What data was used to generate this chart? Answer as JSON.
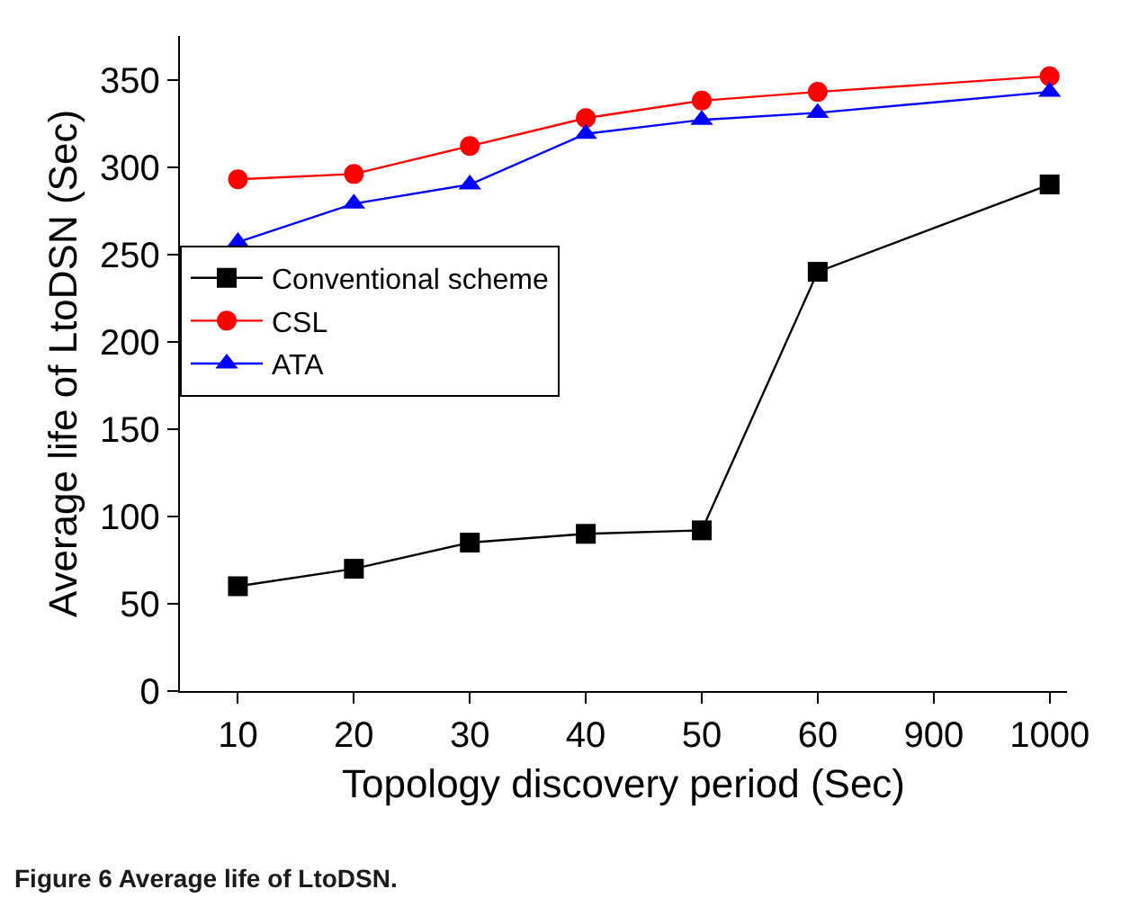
{
  "chart_data": {
    "type": "line",
    "xlabel": "Topology discovery period (Sec)",
    "ylabel": "Average life of LtoDSN (Sec)",
    "categories": [
      "10",
      "20",
      "30",
      "40",
      "50",
      "60",
      "900",
      "1000"
    ],
    "series": [
      {
        "name": "Conventional scheme",
        "color": "#000000",
        "marker": "square",
        "values": [
          60,
          70,
          85,
          90,
          92,
          240,
          null,
          290
        ]
      },
      {
        "name": "CSL",
        "color": "#ff0000",
        "marker": "circle",
        "values": [
          293,
          296,
          312,
          328,
          338,
          343,
          null,
          352
        ]
      },
      {
        "name": "ATA",
        "color": "#0000ff",
        "marker": "triangle",
        "values": [
          257,
          279,
          290,
          319,
          327,
          331,
          null,
          343
        ]
      }
    ],
    "ylim": [
      0,
      375
    ],
    "yticks": [
      0,
      50,
      100,
      150,
      200,
      250,
      300,
      350
    ],
    "grid": false,
    "legend": "left",
    "annotations": [
      "Figure 6 Average life of LtoDSN."
    ]
  }
}
